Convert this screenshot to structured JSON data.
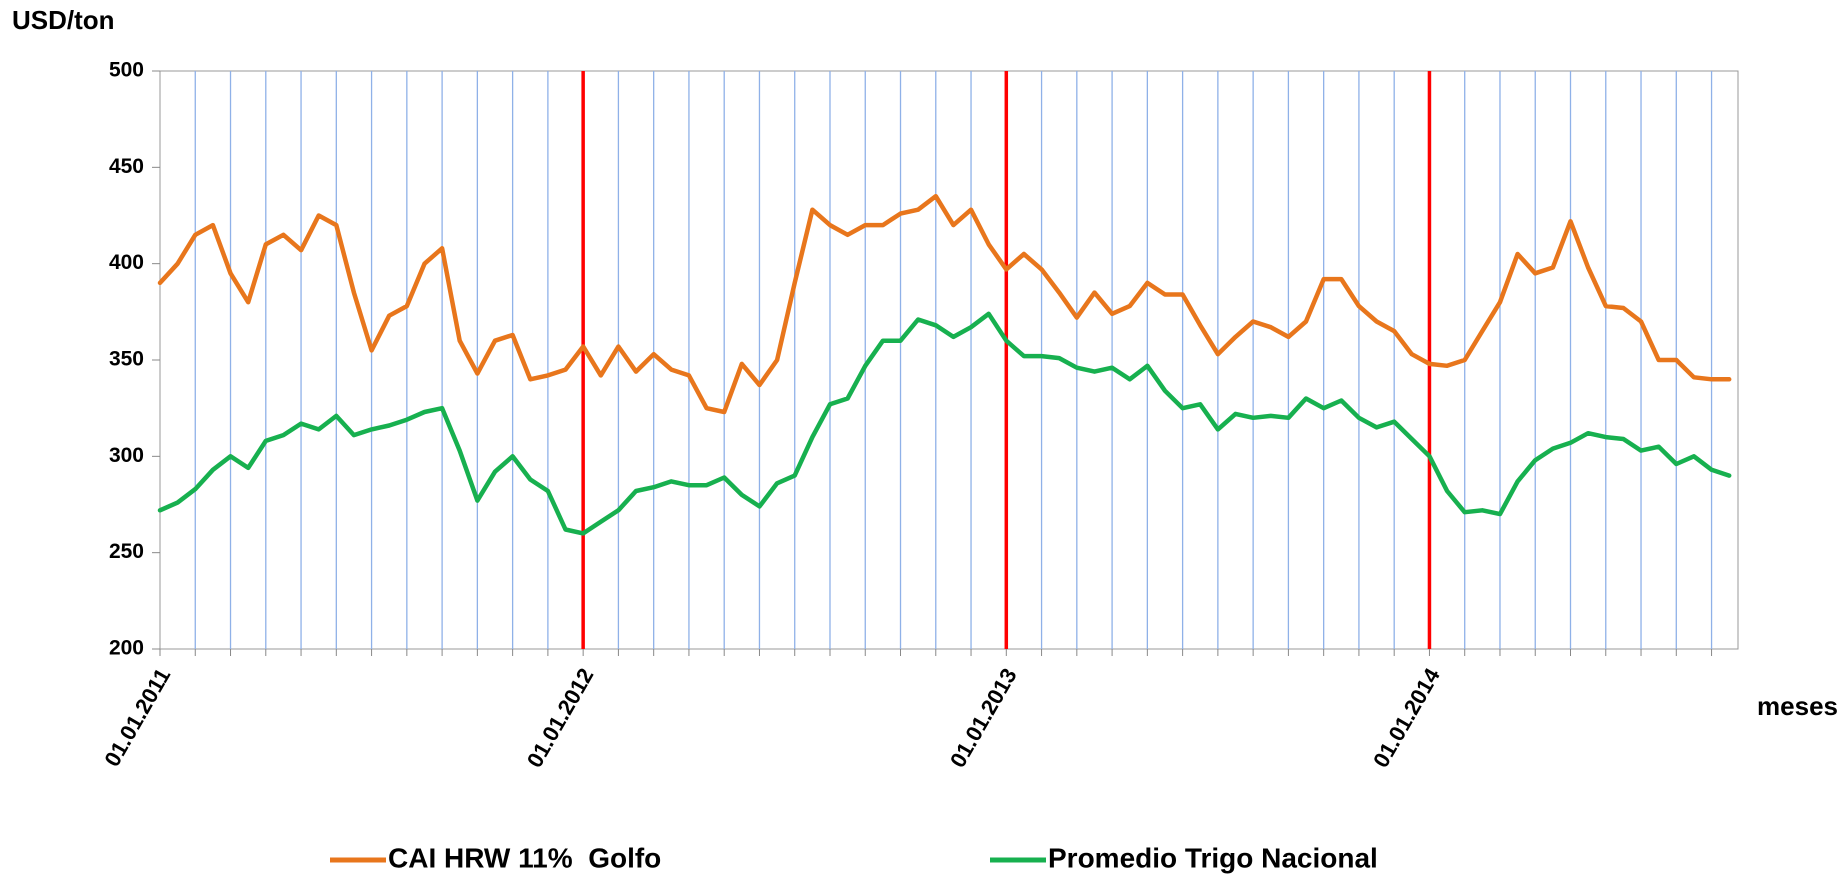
{
  "chart_data": {
    "type": "line",
    "y_label": "USD/ton",
    "x_label": "meses",
    "categories": [
      "01.01.2011",
      null,
      null,
      null,
      null,
      null,
      null,
      null,
      null,
      null,
      null,
      null,
      null,
      null,
      null,
      null,
      null,
      null,
      null,
      null,
      null,
      null,
      null,
      null,
      "01.01.2012",
      null,
      null,
      null,
      null,
      null,
      null,
      null,
      null,
      null,
      null,
      null,
      null,
      null,
      null,
      null,
      null,
      null,
      null,
      null,
      null,
      null,
      null,
      null,
      "01.01.2013",
      null,
      null,
      null,
      null,
      null,
      null,
      null,
      null,
      null,
      null,
      null,
      null,
      null,
      null,
      null,
      null,
      null,
      null,
      null,
      null,
      null,
      null,
      null,
      "01.01.2014",
      null,
      null,
      null,
      null,
      null,
      null,
      null,
      null,
      null,
      null,
      null,
      null,
      null,
      null,
      null,
      null,
      null
    ],
    "series": [
      {
        "name": "CAI HRW 11%  Golfo",
        "color": "#e8761c",
        "values": [
          390,
          400,
          415,
          420,
          395,
          380,
          410,
          415,
          407,
          425,
          420,
          385,
          355,
          373,
          378,
          400,
          408,
          360,
          343,
          360,
          363,
          340,
          342,
          345,
          357,
          342,
          357,
          344,
          353,
          345,
          342,
          325,
          323,
          348,
          337,
          350,
          390,
          428,
          420,
          415,
          420,
          420,
          426,
          428,
          435,
          420,
          428,
          410,
          397,
          405,
          397,
          385,
          372,
          385,
          374,
          378,
          390,
          384,
          384,
          368,
          353,
          362,
          370,
          367,
          362,
          370,
          392,
          392,
          378,
          370,
          365,
          353,
          348,
          347,
          350,
          365,
          380,
          405,
          395,
          398,
          422,
          398,
          378,
          377,
          370,
          350,
          350,
          341,
          340,
          340
        ]
      },
      {
        "name": "Promedio Trigo Nacional",
        "color": "#17b04f",
        "values": [
          272,
          276,
          283,
          293,
          300,
          294,
          308,
          311,
          317,
          314,
          321,
          311,
          314,
          316,
          319,
          323,
          325,
          303,
          277,
          292,
          300,
          288,
          282,
          262,
          260,
          266,
          272,
          282,
          284,
          287,
          285,
          285,
          289,
          280,
          274,
          286,
          290,
          310,
          327,
          330,
          347,
          360,
          360,
          371,
          368,
          362,
          367,
          374,
          360,
          352,
          352,
          351,
          346,
          344,
          346,
          340,
          347,
          334,
          325,
          327,
          314,
          322,
          320,
          321,
          320,
          330,
          325,
          329,
          320,
          315,
          318,
          309,
          300,
          282,
          271,
          272,
          270,
          287,
          298,
          304,
          307,
          312,
          310,
          309,
          303,
          305,
          296,
          300,
          293,
          290
        ]
      }
    ],
    "ylim": [
      200,
      500
    ],
    "yticks": [
      200,
      250,
      300,
      350,
      400,
      450,
      500
    ],
    "grid": true,
    "grid_color": "#8fb1e8",
    "year_line_color": "#ff0000",
    "legend": "bottom"
  }
}
